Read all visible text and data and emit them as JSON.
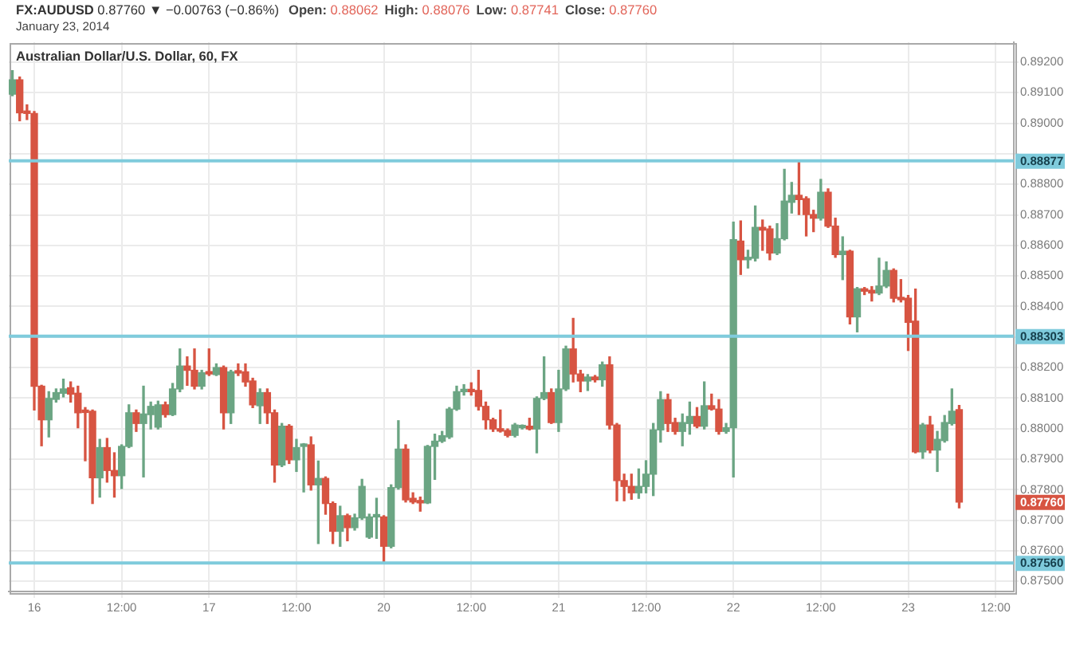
{
  "chart_data": {
    "type": "candlestick",
    "title": "Australian Dollar/U.S. Dollar, 60, FX",
    "subtitle": "January 23, 2014",
    "annotations": [
      "FX:AUDUSD 0.87760 ▼ −0.00763 (−0.86%)",
      "Open: 0.88062",
      "High: 0.88076",
      "Low: 0.87741",
      "Close: 0.87760"
    ],
    "categories": [
      null,
      null,
      null,
      "16",
      null,
      null,
      null,
      null,
      null,
      null,
      null,
      null,
      null,
      null,
      null,
      "12:00",
      null,
      null,
      null,
      null,
      null,
      null,
      null,
      null,
      null,
      null,
      null,
      "17",
      null,
      null,
      null,
      null,
      null,
      null,
      null,
      null,
      null,
      null,
      null,
      "12:00",
      null,
      null,
      null,
      null,
      null,
      null,
      null,
      null,
      null,
      null,
      null,
      "20",
      null,
      null,
      null,
      null,
      null,
      null,
      null,
      null,
      null,
      null,
      null,
      "12:00",
      null,
      null,
      null,
      null,
      null,
      null,
      null,
      null,
      null,
      null,
      null,
      "21",
      null,
      null,
      null,
      null,
      null,
      null,
      null,
      null,
      null,
      null,
      null,
      "12:00",
      null,
      null,
      null,
      null,
      null,
      null,
      null,
      null,
      null,
      null,
      null,
      "22",
      null,
      null,
      null,
      null,
      null,
      null,
      null,
      null,
      null,
      null,
      null,
      "12:00",
      null,
      null,
      null,
      null,
      null,
      null,
      null,
      null,
      null,
      null,
      null,
      "23",
      null,
      null,
      null,
      null,
      null,
      null,
      null,
      null,
      null,
      null,
      null,
      "12:00",
      null,
      null
    ],
    "ohlc": [
      [
        0.89095,
        0.89172,
        0.8909,
        0.89142
      ],
      [
        0.89142,
        0.89151,
        0.89008,
        0.89034
      ],
      [
        0.89036,
        0.8906,
        0.89012,
        0.89032
      ],
      [
        0.89032,
        0.89038,
        0.88061,
        0.88139
      ],
      [
        0.88139,
        0.88142,
        0.87944,
        0.88029
      ],
      [
        0.88029,
        0.88121,
        0.87973,
        0.88099
      ],
      [
        0.88096,
        0.8813,
        0.88087,
        0.88118
      ],
      [
        0.88116,
        0.88162,
        0.88104,
        0.8813
      ],
      [
        0.88134,
        0.88153,
        0.88087,
        0.88113
      ],
      [
        0.88116,
        0.88139,
        0.88003,
        0.88052
      ],
      [
        0.88057,
        0.88069,
        0.87895,
        0.88053
      ],
      [
        0.88057,
        0.88061,
        0.87755,
        0.87839
      ],
      [
        0.87839,
        0.87965,
        0.87776,
        0.87938
      ],
      [
        0.87938,
        0.87968,
        0.87825,
        0.87863
      ],
      [
        0.87863,
        0.87921,
        0.87776,
        0.87846
      ],
      [
        0.87846,
        0.87947,
        0.87804,
        0.87942
      ],
      [
        0.87942,
        0.88078,
        0.87938,
        0.88052
      ],
      [
        0.88052,
        0.88061,
        0.87991,
        0.88017
      ],
      [
        0.88017,
        0.88139,
        0.87842,
        0.88048
      ],
      [
        0.88046,
        0.88087,
        0.87999,
        0.88073
      ],
      [
        0.88005,
        0.8809,
        0.87999,
        0.88078
      ],
      [
        0.88078,
        0.88087,
        0.88038,
        0.88046
      ],
      [
        0.88046,
        0.88148,
        0.88043,
        0.8813
      ],
      [
        0.8813,
        0.88261,
        0.88121,
        0.88205
      ],
      [
        0.88205,
        0.88235,
        0.88142,
        0.88191
      ],
      [
        0.88191,
        0.88261,
        0.8813,
        0.88139
      ],
      [
        0.88139,
        0.88191,
        0.8813,
        0.88183
      ],
      [
        0.88183,
        0.88261,
        0.88174,
        0.88179
      ],
      [
        0.88177,
        0.88212,
        0.88174,
        0.882
      ],
      [
        0.882,
        0.88205,
        0.87999,
        0.88052
      ],
      [
        0.88052,
        0.88191,
        0.88017,
        0.88186
      ],
      [
        0.88186,
        0.88212,
        0.88174,
        0.88182
      ],
      [
        0.88186,
        0.88212,
        0.88139,
        0.88153
      ],
      [
        0.88156,
        0.88165,
        0.88069,
        0.88078
      ],
      [
        0.88075,
        0.8813,
        0.88017,
        0.88118
      ],
      [
        0.88118,
        0.8813,
        0.88017,
        0.88052
      ],
      [
        0.88052,
        0.88061,
        0.87825,
        0.87881
      ],
      [
        0.87881,
        0.88017,
        0.87876,
        0.88008
      ],
      [
        0.88008,
        0.88013,
        0.87886,
        0.87898
      ],
      [
        0.87898,
        0.87965,
        0.8786,
        0.87938
      ],
      [
        0.87942,
        0.87951,
        0.87793,
        0.87945
      ],
      [
        0.87947,
        0.87973,
        0.87799,
        0.87816
      ],
      [
        0.87816,
        0.87894,
        0.87624,
        0.87837
      ],
      [
        0.87837,
        0.87842,
        0.8772,
        0.87755
      ],
      [
        0.87755,
        0.8776,
        0.87624,
        0.87664
      ],
      [
        0.87664,
        0.87746,
        0.87615,
        0.87715
      ],
      [
        0.87715,
        0.8772,
        0.87633,
        0.87676
      ],
      [
        0.87676,
        0.8772,
        0.87668,
        0.87708
      ],
      [
        0.87708,
        0.87834,
        0.87703,
        0.87811
      ],
      [
        0.87645,
        0.8772,
        0.87641,
        0.87711
      ],
      [
        0.87711,
        0.87772,
        0.87641,
        0.87715
      ],
      [
        0.87711,
        0.87715,
        0.87563,
        0.87615
      ],
      [
        0.87615,
        0.87816,
        0.8761,
        0.87807
      ],
      [
        0.87807,
        0.88026,
        0.87802,
        0.87933
      ],
      [
        0.87933,
        0.87947,
        0.8776,
        0.87767
      ],
      [
        0.87772,
        0.8779,
        0.87755,
        0.8776
      ],
      [
        0.87764,
        0.87776,
        0.8773,
        0.87757
      ],
      [
        0.87757,
        0.87945,
        0.87755,
        0.87942
      ],
      [
        0.87942,
        0.87982,
        0.87834,
        0.87959
      ],
      [
        0.87959,
        0.87991,
        0.87955,
        0.87977
      ],
      [
        0.87973,
        0.88069,
        0.87968,
        0.88064
      ],
      [
        0.88064,
        0.88139,
        0.8806,
        0.88121
      ],
      [
        0.88121,
        0.88144,
        0.8811,
        0.88127
      ],
      [
        0.88125,
        0.8815,
        0.8811,
        0.88121
      ],
      [
        0.88125,
        0.88191,
        0.88061,
        0.88073
      ],
      [
        0.88073,
        0.88087,
        0.87999,
        0.88029
      ],
      [
        0.88029,
        0.88034,
        0.87991,
        0.87999
      ],
      [
        0.87999,
        0.88061,
        0.87989,
        0.87992
      ],
      [
        0.87994,
        0.87999,
        0.87973,
        0.87978
      ],
      [
        0.87978,
        0.88017,
        0.87973,
        0.88012
      ],
      [
        0.88003,
        0.88012,
        0.87999,
        0.88008
      ],
      [
        0.88008,
        0.88034,
        0.87996,
        0.87999
      ],
      [
        0.87999,
        0.88104,
        0.87921,
        0.88099
      ],
      [
        0.88099,
        0.88235,
        0.88095,
        0.88118
      ],
      [
        0.88118,
        0.8813,
        0.88017,
        0.8802
      ],
      [
        0.8802,
        0.88191,
        0.87991,
        0.8813
      ],
      [
        0.8813,
        0.8827,
        0.88125,
        0.88261
      ],
      [
        0.88261,
        0.88361,
        0.88153,
        0.88179
      ],
      [
        0.88179,
        0.88191,
        0.88121,
        0.88156
      ],
      [
        0.88156,
        0.88177,
        0.88125,
        0.88169
      ],
      [
        0.88169,
        0.88174,
        0.88153,
        0.8816
      ],
      [
        0.8816,
        0.88218,
        0.88139,
        0.88209
      ],
      [
        0.88209,
        0.88235,
        0.87999,
        0.88012
      ],
      [
        0.88012,
        0.88017,
        0.87764,
        0.8783
      ],
      [
        0.8783,
        0.87851,
        0.87764,
        0.87811
      ],
      [
        0.87811,
        0.87851,
        0.87769,
        0.8779
      ],
      [
        0.8779,
        0.87868,
        0.87772,
        0.87811
      ],
      [
        0.87811,
        0.87895,
        0.8779,
        0.87851
      ],
      [
        0.87851,
        0.88017,
        0.87781,
        0.87996
      ],
      [
        0.87996,
        0.88121,
        0.87956,
        0.88095
      ],
      [
        0.88095,
        0.88113,
        0.87991,
        0.88017
      ],
      [
        0.8802,
        0.88034,
        0.87982,
        0.87991
      ],
      [
        0.87991,
        0.88048,
        0.87944,
        0.8802
      ],
      [
        0.88017,
        0.88087,
        0.87982,
        0.8804
      ],
      [
        0.8804,
        0.88069,
        0.88003,
        0.88008
      ],
      [
        0.88008,
        0.88153,
        0.87999,
        0.88075
      ],
      [
        0.88075,
        0.88113,
        0.88061,
        0.88064
      ],
      [
        0.88064,
        0.88095,
        0.87982,
        0.87991
      ],
      [
        0.87991,
        0.88017,
        0.87985,
        0.88003
      ],
      [
        0.88003,
        0.88676,
        0.87842,
        0.88619
      ],
      [
        0.88614,
        0.8868,
        0.88505,
        0.88553
      ],
      [
        0.88553,
        0.88584,
        0.88526,
        0.88561
      ],
      [
        0.88558,
        0.88729,
        0.88549,
        0.88659
      ],
      [
        0.88659,
        0.88683,
        0.88584,
        0.8865
      ],
      [
        0.88654,
        0.88663,
        0.88553,
        0.88575
      ],
      [
        0.88575,
        0.88671,
        0.8857,
        0.88622
      ],
      [
        0.88622,
        0.88849,
        0.88618,
        0.88745
      ],
      [
        0.88741,
        0.88806,
        0.88706,
        0.88764
      ],
      [
        0.88764,
        0.88875,
        0.88701,
        0.8875
      ],
      [
        0.88753,
        0.88759,
        0.88631,
        0.88701
      ],
      [
        0.88701,
        0.88715,
        0.88645,
        0.88689
      ],
      [
        0.88689,
        0.88816,
        0.88683,
        0.88774
      ],
      [
        0.88774,
        0.88785,
        0.88659,
        0.88663
      ],
      [
        0.88663,
        0.88689,
        0.88561,
        0.8857
      ],
      [
        0.8857,
        0.88628,
        0.88488,
        0.88581
      ],
      [
        0.88581,
        0.88584,
        0.88343,
        0.88366
      ],
      [
        0.88366,
        0.88462,
        0.88317,
        0.88458
      ],
      [
        0.88458,
        0.88462,
        0.88439,
        0.8845
      ],
      [
        0.88453,
        0.88465,
        0.88418,
        0.88444
      ],
      [
        0.88444,
        0.88558,
        0.88439,
        0.88467
      ],
      [
        0.88467,
        0.88546,
        0.88462,
        0.88518
      ],
      [
        0.88518,
        0.88523,
        0.88415,
        0.88427
      ],
      [
        0.8843,
        0.88488,
        0.88415,
        0.88422
      ],
      [
        0.88427,
        0.88436,
        0.88256,
        0.88348
      ],
      [
        0.88352,
        0.88457,
        0.87921,
        0.87924
      ],
      [
        0.87924,
        0.88017,
        0.87903,
        0.88012
      ],
      [
        0.88012,
        0.8804,
        0.87921,
        0.8793
      ],
      [
        0.8793,
        0.87991,
        0.8786,
        0.87965
      ],
      [
        0.87961,
        0.88043,
        0.87956,
        0.8802
      ],
      [
        0.88017,
        0.8813,
        0.88012,
        0.88057
      ],
      [
        0.88062,
        0.88076,
        0.87741,
        0.8776
      ],
      null,
      null,
      null,
      null,
      null,
      null,
      null
    ],
    "colors": [
      "#6ba583",
      "#d75442",
      "#d75442",
      "#d75442",
      "#d75442",
      "#6ba583",
      "#6ba583",
      "#6ba583",
      "#d75442",
      "#d75442",
      "#d75442",
      "#d75442",
      "#6ba583",
      "#d75442",
      "#d75442",
      "#6ba583",
      "#6ba583",
      "#d75442",
      "#6ba583",
      "#6ba583",
      "#6ba583",
      "#d75442",
      "#6ba583",
      "#6ba583",
      "#d75442",
      "#d75442",
      "#6ba583",
      "#d75442",
      "#6ba583",
      "#d75442",
      "#6ba583",
      "#d75442",
      "#d75442",
      "#d75442",
      "#6ba583",
      "#d75442",
      "#d75442",
      "#6ba583",
      "#d75442",
      "#6ba583",
      "#6ba583",
      "#d75442",
      "#6ba583",
      "#d75442",
      "#d75442",
      "#6ba583",
      "#d75442",
      "#6ba583",
      "#6ba583",
      "#6ba583",
      "#6ba583",
      "#d75442",
      "#6ba583",
      "#6ba583",
      "#d75442",
      "#d75442",
      "#d75442",
      "#6ba583",
      "#6ba583",
      "#6ba583",
      "#6ba583",
      "#6ba583",
      "#6ba583",
      "#d75442",
      "#d75442",
      "#d75442",
      "#d75442",
      "#d75442",
      "#d75442",
      "#6ba583",
      "#6ba583",
      "#d75442",
      "#6ba583",
      "#6ba583",
      "#d75442",
      "#6ba583",
      "#6ba583",
      "#d75442",
      "#d75442",
      "#6ba583",
      "#d75442",
      "#6ba583",
      "#d75442",
      "#d75442",
      "#d75442",
      "#d75442",
      "#6ba583",
      "#6ba583",
      "#6ba583",
      "#6ba583",
      "#d75442",
      "#d75442",
      "#6ba583",
      "#6ba583",
      "#d75442",
      "#6ba583",
      "#d75442",
      "#d75442",
      "#6ba583",
      "#6ba583",
      "#d75442",
      "#6ba583",
      "#6ba583",
      "#d75442",
      "#d75442",
      "#6ba583",
      "#6ba583",
      "#6ba583",
      "#d75442",
      "#d75442",
      "#d75442",
      "#6ba583",
      "#d75442",
      "#d75442",
      "#6ba583",
      "#d75442",
      "#6ba583",
      "#d75442",
      "#d75442",
      "#6ba583",
      "#6ba583",
      "#d75442",
      "#d75442",
      "#d75442",
      "#d75442",
      "#6ba583",
      "#d75442",
      "#6ba583",
      "#6ba583",
      "#6ba583",
      "#d75442",
      null,
      null,
      null,
      null,
      null,
      null,
      null
    ],
    "value_labels": [
      null,
      null,
      null,
      null,
      null,
      null,
      null,
      null,
      null,
      null,
      null,
      null,
      null,
      null,
      null,
      null,
      null,
      null,
      null,
      null,
      null,
      null,
      null,
      null,
      null,
      null,
      null,
      null,
      null,
      null,
      null,
      null,
      null,
      null,
      null,
      null,
      null,
      null,
      null,
      null,
      null,
      null,
      null,
      null,
      null,
      null,
      null,
      null,
      null,
      null,
      null,
      null,
      null,
      null,
      null,
      null,
      null,
      null,
      null,
      null,
      null,
      null,
      null,
      null,
      null,
      null,
      null,
      null,
      null,
      null,
      null,
      null,
      null,
      null,
      null,
      null,
      null,
      null,
      null,
      null,
      null,
      null,
      null,
      null,
      null,
      null,
      null,
      null,
      null,
      null,
      null,
      null,
      null,
      null,
      null,
      null,
      null,
      null,
      null,
      null,
      null,
      null,
      null,
      null,
      null,
      null,
      null,
      null,
      null,
      null,
      null,
      null,
      null,
      null,
      null,
      null,
      null,
      null,
      null,
      null,
      null,
      null,
      null,
      null,
      null,
      null,
      null,
      null,
      null,
      null,
      "0.87760",
      null,
      null,
      null,
      null,
      null,
      null,
      null
    ],
    "ylim": [
      0.87467,
      0.89265
    ],
    "yticks": [
      {
        "value": 0.875,
        "label": "0.87500"
      },
      {
        "value": 0.876,
        "label": "0.87600"
      },
      {
        "value": 0.877,
        "label": "0.87700"
      },
      {
        "value": 0.878,
        "label": "0.87800"
      },
      {
        "value": 0.879,
        "label": "0.87900"
      },
      {
        "value": 0.88,
        "label": "0.88000"
      },
      {
        "value": 0.881,
        "label": "0.88100"
      },
      {
        "value": 0.882,
        "label": "0.88200"
      },
      {
        "value": 0.883,
        "label": null
      },
      {
        "value": 0.884,
        "label": "0.88400"
      },
      {
        "value": 0.885,
        "label": "0.88500"
      },
      {
        "value": 0.886,
        "label": "0.88600"
      },
      {
        "value": 0.887,
        "label": "0.88700"
      },
      {
        "value": 0.888,
        "label": "0.88800"
      },
      {
        "value": 0.889,
        "label": null
      },
      {
        "value": 0.89,
        "label": "0.89000"
      },
      {
        "value": 0.891,
        "label": "0.89100"
      },
      {
        "value": 0.892,
        "label": "0.89200"
      }
    ],
    "ref_lines": [
      {
        "axis": "y",
        "value": 0.88877,
        "label": "0.88877",
        "color": "#7fcbdc"
      },
      {
        "axis": "y",
        "value": 0.88303,
        "label": "0.88303",
        "color": "#7fcbdc"
      },
      {
        "axis": "y",
        "value": 0.8756,
        "label": "0.87560",
        "color": "#7fcbdc"
      }
    ],
    "grid": true
  }
}
